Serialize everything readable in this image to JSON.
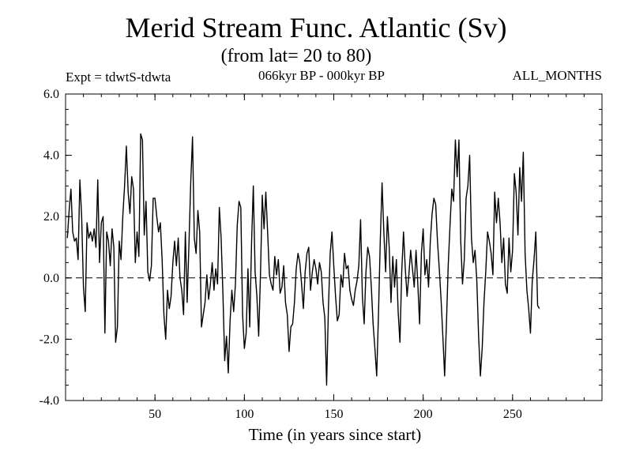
{
  "chart_data": {
    "type": "line",
    "title": "Merid Stream Func. Atlantic (Sv)",
    "subtitle": "(from lat= 20 to 80)",
    "annotations": {
      "left": "Expt = tdwtS-tdwta",
      "center": "066kyr BP - 000kyr BP",
      "right": "ALL_MONTHS"
    },
    "xlabel": "Time (in years since start)",
    "ylabel": "",
    "xlim": [
      0,
      300
    ],
    "ylim": [
      -4,
      6
    ],
    "xticks": [
      50,
      100,
      150,
      200,
      250
    ],
    "xtick_labels": [
      "50",
      "100",
      "150",
      "200",
      "250"
    ],
    "yticks": [
      -4,
      -2,
      0,
      2,
      4,
      6
    ],
    "ytick_labels": [
      "-4.0",
      "-2.0",
      "0.0",
      "2.0",
      "4.0",
      "6.0"
    ],
    "reference_line": {
      "y": 0,
      "style": "dashed"
    },
    "grid": false,
    "series": [
      {
        "name": "Merid Stream Func.",
        "x_start": 1,
        "x_step": 1,
        "values": [
          1.3,
          2.2,
          2.9,
          1.5,
          1.2,
          1.3,
          0.6,
          3.2,
          2.0,
          -0.3,
          -1.1,
          1.8,
          1.3,
          1.5,
          1.2,
          1.6,
          1.0,
          3.2,
          0.5,
          1.8,
          2.0,
          -1.8,
          1.5,
          1.2,
          0.4,
          1.6,
          1.0,
          -2.1,
          -1.6,
          1.2,
          0.6,
          2.0,
          3.0,
          4.3,
          2.8,
          2.1,
          3.3,
          2.9,
          0.5,
          1.5,
          0.7,
          4.7,
          4.5,
          1.4,
          2.5,
          0.2,
          -0.1,
          0.4,
          2.6,
          2.6,
          2.0,
          1.5,
          1.8,
          0.6,
          -1.2,
          -2.0,
          -0.4,
          -1.0,
          -0.6,
          0.5,
          1.2,
          0.4,
          1.3,
          0.0,
          -0.4,
          -1.2,
          1.5,
          -0.8,
          1.1,
          3.1,
          4.6,
          1.3,
          0.8,
          2.2,
          1.5,
          -1.6,
          -1.2,
          -0.8,
          0.1,
          -0.7,
          -0.2,
          0.5,
          -0.4,
          0.3,
          -0.2,
          2.3,
          1.3,
          -0.5,
          -2.7,
          -1.9,
          -3.1,
          -1.4,
          -0.4,
          -1.1,
          -0.2,
          1.7,
          2.5,
          2.3,
          -1.2,
          -2.3,
          -1.8,
          0.3,
          -1.6,
          1.1,
          3.0,
          0.2,
          -0.6,
          -1.9,
          0.1,
          2.7,
          1.6,
          2.8,
          1.5,
          0.1,
          -0.2,
          -0.4,
          0.7,
          0.1,
          0.6,
          -0.5,
          -0.3,
          0.4,
          -0.8,
          -1.2,
          -2.4,
          -1.6,
          -1.5,
          -0.8,
          0.3,
          0.8,
          0.5,
          -0.2,
          -1.0,
          0.2,
          0.8,
          1.0,
          -0.4,
          0.2,
          0.6,
          0.3,
          -0.2,
          0.5,
          0.2,
          -0.8,
          -1.3,
          -3.5,
          -1.0,
          0.8,
          1.5,
          0.4,
          -0.6,
          -1.4,
          -1.2,
          0.1,
          -0.3,
          0.8,
          0.3,
          0.4,
          -0.4,
          -0.7,
          -0.9,
          -0.4,
          -0.1,
          0.4,
          1.9,
          -0.6,
          -1.5,
          0.2,
          1.0,
          0.7,
          -0.3,
          -1.5,
          -2.3,
          -3.2,
          -1.2,
          1.2,
          3.1,
          1.5,
          0.2,
          2.0,
          1.0,
          -0.8,
          0.7,
          -0.3,
          0.6,
          -1.1,
          -2.1,
          0.2,
          1.5,
          0.3,
          -0.6,
          0.1,
          0.9,
          0.3,
          -0.3,
          0.9,
          -0.2,
          -1.5,
          0.8,
          1.6,
          0.1,
          0.6,
          -0.3,
          1.2,
          2.1,
          2.6,
          2.4,
          1.2,
          0.3,
          -0.7,
          -1.9,
          -3.2,
          -1.5,
          0.4,
          1.7,
          2.9,
          2.5,
          4.5,
          3.3,
          4.5,
          1.2,
          -0.2,
          0.6,
          2.6,
          3.0,
          4.0,
          1.3,
          0.5,
          0.9,
          -0.1,
          -1.9,
          -3.2,
          -2.3,
          -0.8,
          0.2,
          1.5,
          1.2,
          0.8,
          0.1,
          2.8,
          1.8,
          2.6,
          1.8,
          0.5,
          1.3,
          -0.2,
          -0.5,
          1.3,
          0.2,
          0.9,
          3.4,
          2.8,
          1.4,
          3.6,
          2.5,
          4.1,
          0.8,
          -0.4,
          -1.0,
          -1.8,
          -0.1,
          0.6,
          1.5,
          -0.9,
          -1.0
        ]
      }
    ]
  }
}
